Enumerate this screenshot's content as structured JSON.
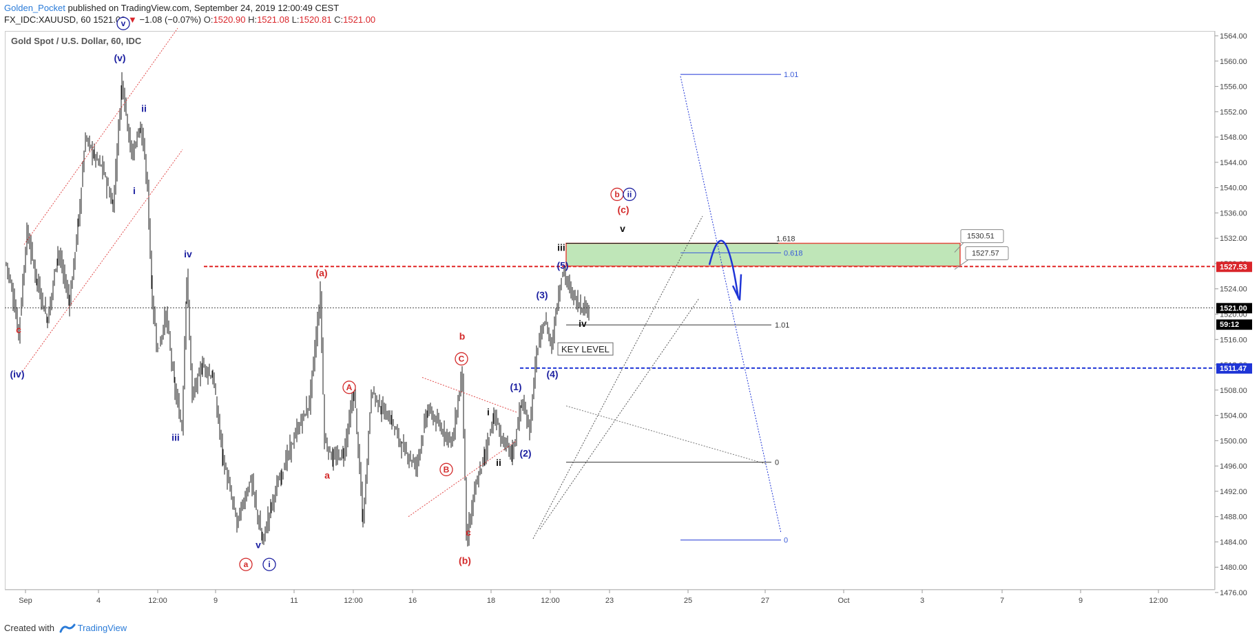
{
  "header": {
    "author": "Golden_Pocket",
    "published_text": " published on TradingView.com, September 24, 2019 12:00:49 CEST"
  },
  "ohlc": {
    "symbol": "FX_IDC:XAUUSD, 60",
    "last": "1521.00",
    "change_arrow": "▼",
    "change": "−1.08 (−0.07%)",
    "o_label": "O:",
    "o": "1520.90",
    "h_label": "H:",
    "h": "1521.08",
    "l_label": "L:",
    "l": "1520.81",
    "c_label": "C:",
    "c": "1521.00"
  },
  "instrument_title": "Gold Spot / U.S. Dollar, 60, IDC",
  "footer": {
    "created_with": "Created with",
    "brand": "TradingView"
  },
  "colors": {
    "red": "#d32a2a",
    "navy": "#1b1fa0",
    "blue_line": "#1f35d6",
    "zone_fill": "#bfe6b8",
    "zone_border": "#e4493d",
    "bar": "#1a1a1a",
    "black_label_bg": "#000000",
    "red_label_bg": "#d9252a",
    "blue_label_bg": "#1f35d6"
  },
  "chart_data": {
    "type": "line",
    "ylim": [
      1475,
      1566
    ],
    "y_ticks": [
      "1564.00",
      "1560.00",
      "1556.00",
      "1552.00",
      "1548.00",
      "1544.00",
      "1540.00",
      "1536.00",
      "1532.00",
      "1528.00",
      "1524.00",
      "1520.00",
      "1516.00",
      "1512.00",
      "1508.00",
      "1504.00",
      "1500.00",
      "1496.00",
      "1492.00",
      "1488.00",
      "1484.00",
      "1480.00",
      "1476.00"
    ],
    "x_ticks": [
      "Sep",
      "4",
      "12:00",
      "9",
      "11",
      "12:00",
      "16",
      "18",
      "12:00",
      "23",
      "25",
      "27",
      "Oct",
      "3",
      "7",
      "9",
      "12:00"
    ],
    "series": [
      {
        "values": [
          [
            0,
            1528
          ],
          [
            8,
            1524
          ],
          [
            18,
            1517
          ],
          [
            30,
            1533
          ],
          [
            45,
            1525
          ],
          [
            60,
            1519
          ],
          [
            75,
            1530
          ],
          [
            92,
            1522
          ],
          [
            105,
            1535
          ],
          [
            115,
            1548
          ],
          [
            128,
            1545
          ],
          [
            140,
            1543
          ],
          [
            155,
            1537
          ],
          [
            168,
            1557
          ],
          [
            182,
            1545
          ],
          [
            195,
            1550
          ],
          [
            205,
            1540
          ],
          [
            212,
            1522
          ],
          [
            220,
            1514
          ],
          [
            232,
            1520
          ],
          [
            245,
            1508
          ],
          [
            255,
            1502
          ],
          [
            262,
            1526
          ],
          [
            270,
            1507
          ],
          [
            285,
            1512
          ],
          [
            300,
            1510
          ],
          [
            315,
            1497
          ],
          [
            335,
            1487
          ],
          [
            355,
            1494
          ],
          [
            372,
            1484
          ],
          [
            385,
            1490
          ],
          [
            400,
            1495
          ],
          [
            420,
            1501
          ],
          [
            440,
            1506
          ],
          [
            456,
            1523
          ],
          [
            462,
            1500
          ],
          [
            475,
            1497
          ],
          [
            490,
            1498
          ],
          [
            505,
            1508
          ],
          [
            518,
            1487
          ],
          [
            530,
            1508
          ],
          [
            545,
            1505
          ],
          [
            560,
            1503
          ],
          [
            575,
            1499
          ],
          [
            595,
            1496
          ],
          [
            612,
            1505
          ],
          [
            630,
            1502
          ],
          [
            648,
            1500
          ],
          [
            662,
            1511
          ],
          [
            668,
            1484
          ],
          [
            680,
            1492
          ],
          [
            695,
            1498
          ],
          [
            708,
            1504
          ],
          [
            720,
            1500
          ],
          [
            735,
            1498
          ],
          [
            748,
            1506
          ],
          [
            760,
            1502
          ],
          [
            770,
            1514
          ],
          [
            782,
            1519
          ],
          [
            792,
            1515
          ],
          [
            800,
            1522
          ],
          [
            808,
            1527
          ],
          [
            818,
            1524
          ],
          [
            828,
            1522
          ],
          [
            838,
            1521
          ],
          [
            846,
            1521
          ]
        ]
      }
    ],
    "price_labels": [
      {
        "text": "1527.53",
        "price": 1527.53,
        "style": "red"
      },
      {
        "text": "1521.00",
        "price": 1521.0,
        "style": "black"
      },
      {
        "text": "59:12",
        "price": 1518.4,
        "style": "black"
      },
      {
        "text": "1511.47",
        "price": 1511.47,
        "style": "blue"
      }
    ],
    "horizontal_levels": [
      {
        "name": "resistance-1527-53",
        "price": 1527.53,
        "style": "red-dashed"
      },
      {
        "name": "current-price",
        "price": 1521.0,
        "style": "black-dotted"
      },
      {
        "name": "key-level-1511-47",
        "price": 1511.47,
        "style": "blue-dashed"
      }
    ],
    "zone": {
      "top": 1531.2,
      "bottom": 1527.6,
      "callouts": [
        "1530.51",
        "1527.57"
      ]
    },
    "fib_labels": {
      "upper_101": "1.01",
      "f1618": "1.618",
      "f0618": "0.618",
      "lower_101": "1.01",
      "zero_a": "0",
      "zero_b": "0"
    },
    "key_level_text": "KEY LEVEL",
    "wave_labels": [
      {
        "text": "c",
        "color": "red",
        "bar": 18,
        "price": 1517
      },
      {
        "text": "(iv)",
        "color": "navy",
        "bar": 16,
        "price": 1510
      },
      {
        "text": "(v)",
        "color": "navy",
        "bar": 165,
        "price": 1560
      },
      {
        "text": "v",
        "color": "navy",
        "bar": 170,
        "price": 1565.5,
        "circled": true
      },
      {
        "text": "ii",
        "color": "navy",
        "bar": 200,
        "price": 1552
      },
      {
        "text": "i",
        "color": "navy",
        "bar": 186,
        "price": 1539
      },
      {
        "text": "iv",
        "color": "navy",
        "bar": 264,
        "price": 1529
      },
      {
        "text": "iii",
        "color": "navy",
        "bar": 246,
        "price": 1500
      },
      {
        "text": "v",
        "color": "navy",
        "bar": 366,
        "price": 1483
      },
      {
        "text": "a",
        "color": "red",
        "bar": 348,
        "price": 1480,
        "circled": true
      },
      {
        "text": "i",
        "color": "navy",
        "bar": 382,
        "price": 1480,
        "circled": true
      },
      {
        "text": "(a)",
        "color": "red",
        "bar": 458,
        "price": 1526
      },
      {
        "text": "a",
        "color": "red",
        "bar": 466,
        "price": 1494
      },
      {
        "text": "A",
        "color": "red",
        "bar": 498,
        "price": 1508,
        "circled": true
      },
      {
        "text": "B",
        "color": "red",
        "bar": 639,
        "price": 1495,
        "circled": true
      },
      {
        "text": "b",
        "color": "red",
        "bar": 662,
        "price": 1516
      },
      {
        "text": "C",
        "color": "red",
        "bar": 661,
        "price": 1512.5,
        "circled": true
      },
      {
        "text": "c",
        "color": "red",
        "bar": 671,
        "price": 1485
      },
      {
        "text": "(b)",
        "color": "red",
        "bar": 666,
        "price": 1480.5
      },
      {
        "text": "i",
        "color": "black",
        "bar": 700,
        "price": 1504
      },
      {
        "text": "ii",
        "color": "black",
        "bar": 715,
        "price": 1496
      },
      {
        "text": "(1)",
        "color": "navy",
        "bar": 740,
        "price": 1508
      },
      {
        "text": "(2)",
        "color": "navy",
        "bar": 754,
        "price": 1497.5
      },
      {
        "text": "(3)",
        "color": "navy",
        "bar": 778,
        "price": 1522.5
      },
      {
        "text": "(4)",
        "color": "navy",
        "bar": 793,
        "price": 1510
      },
      {
        "text": "(5)",
        "color": "navy",
        "bar": 808,
        "price": 1527.2
      },
      {
        "text": "iii",
        "color": "black",
        "bar": 806,
        "price": 1530
      },
      {
        "text": "iv",
        "color": "black",
        "bar": 837,
        "price": 1518
      },
      {
        "text": "v",
        "color": "black",
        "bar": 895,
        "price": 1533
      },
      {
        "text": "(c)",
        "color": "red",
        "bar": 896,
        "price": 1536
      },
      {
        "text": "b",
        "color": "red",
        "bar": 887,
        "price": 1538.5,
        "circled": true
      },
      {
        "text": "ii",
        "color": "navy",
        "bar": 905,
        "price": 1538.5,
        "circled": true
      }
    ]
  }
}
